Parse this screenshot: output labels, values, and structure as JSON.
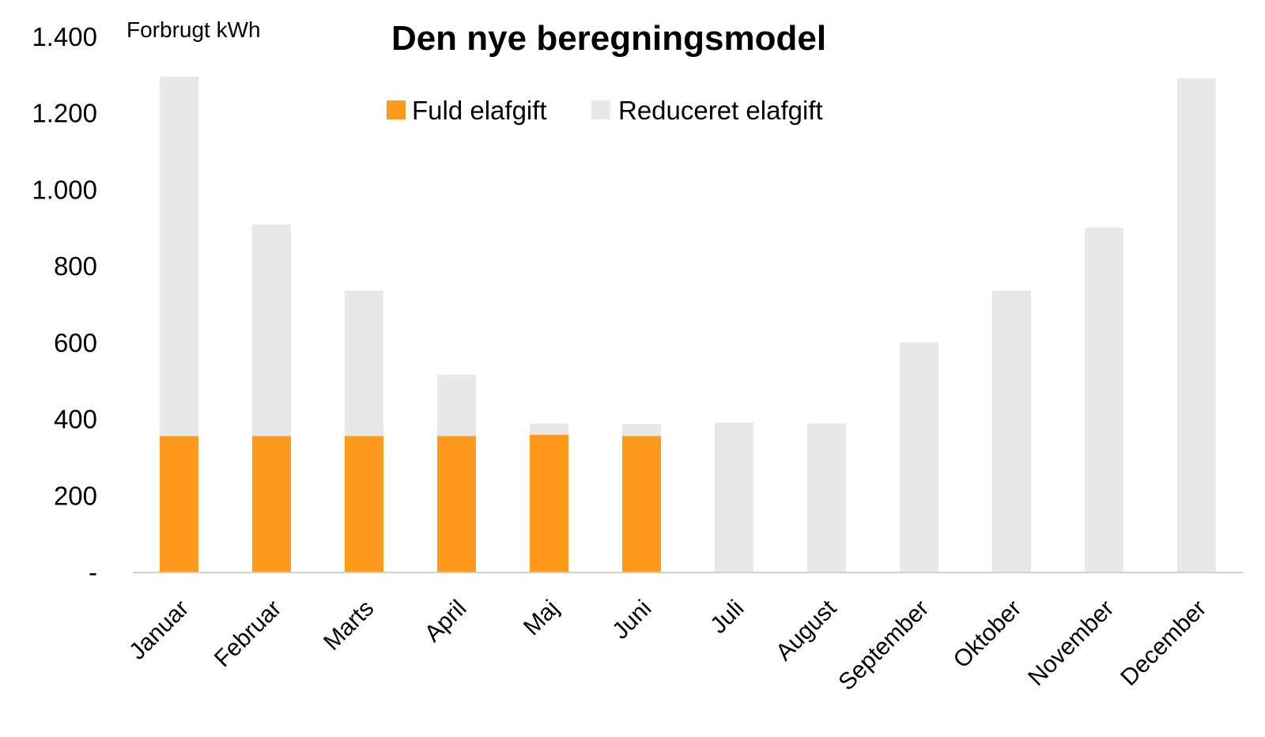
{
  "chart_data": {
    "type": "bar",
    "stacked": true,
    "title": "Den nye beregningsmodel",
    "ylabel": "Forbrugt kWh",
    "xlabel": "",
    "ylim": [
      0,
      1400
    ],
    "yticks": [
      0,
      200,
      400,
      600,
      800,
      1000,
      1200,
      1400
    ],
    "ytick_labels": [
      "-",
      "200",
      "400",
      "600",
      "800",
      "1.000",
      "1.200",
      "1.400"
    ],
    "grid": false,
    "legend_position": "top-center",
    "categories": [
      "Januar",
      "Februar",
      "Marts",
      "April",
      "Maj",
      "Juni",
      "Juli",
      "August",
      "September",
      "Oktober",
      "November",
      "December"
    ],
    "series": [
      {
        "name": "Fuld elafgift",
        "color": "#FF9A1F",
        "values": [
          355,
          355,
          355,
          355,
          358,
          355,
          0,
          0,
          0,
          0,
          0,
          0
        ]
      },
      {
        "name": "Reduceret elafgift",
        "color": "#E8E8E8",
        "values": [
          940,
          553,
          380,
          160,
          30,
          32,
          390,
          388,
          600,
          735,
          900,
          1290
        ]
      }
    ]
  }
}
